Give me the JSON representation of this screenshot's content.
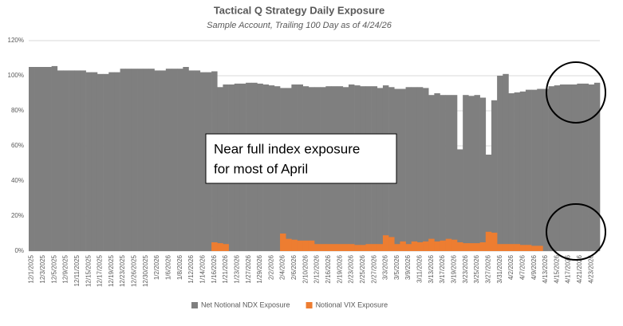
{
  "chart_data": {
    "type": "bar",
    "title": "Tactical Q Strategy Daily Exposure",
    "subtitle": "Sample Account, Trailing 100 Day as of 4/24/26",
    "annotation": [
      "Near full index exposure",
      "for most of April"
    ],
    "categories": [
      "12/1/2025",
      null,
      "12/3/2025",
      null,
      "12/5/2025",
      null,
      "12/9/2025",
      null,
      "12/11/2025",
      null,
      "12/15/2025",
      null,
      "12/17/2025",
      null,
      "12/19/2025",
      null,
      "12/23/2025",
      null,
      "12/26/2025",
      null,
      "12/30/2025",
      null,
      "1/2/2026",
      null,
      "1/6/2026",
      null,
      "1/8/2026",
      null,
      "1/12/2026",
      null,
      "1/14/2026",
      null,
      "1/16/2026",
      null,
      "1/21/2026",
      null,
      "1/23/2026",
      null,
      "1/27/2026",
      null,
      "1/29/2026",
      null,
      "2/2/2026",
      null,
      "2/4/2026",
      null,
      "2/6/2026",
      null,
      "2/10/2026",
      null,
      "2/12/2026",
      null,
      "2/16/2026",
      null,
      "2/19/2026",
      null,
      "2/23/2026",
      null,
      "2/25/2026",
      null,
      "2/27/2026",
      null,
      "3/3/2026",
      null,
      "3/5/2026",
      null,
      "3/9/2026",
      null,
      "3/11/2026",
      null,
      "3/13/2026",
      null,
      "3/17/2026",
      null,
      "3/19/2026",
      null,
      "3/23/2026",
      null,
      "3/25/2026",
      null,
      "3/27/2026",
      null,
      "3/31/2026",
      null,
      "4/2/2026",
      null,
      "4/7/2026",
      null,
      "4/9/2026",
      null,
      "4/13/2026",
      null,
      "4/15/2026",
      null,
      "4/17/2026",
      null,
      "4/21/2026",
      null,
      "4/23/2026",
      null
    ],
    "series": [
      {
        "name": "Net Notional NDX Exposure",
        "color": "#7f7f7f",
        "values": [
          105,
          105,
          105,
          105,
          105.5,
          103,
          103,
          103,
          103,
          103,
          102,
          102,
          101,
          101,
          102,
          102,
          104,
          104,
          104,
          104,
          104,
          104,
          103,
          103,
          104,
          104,
          104,
          105,
          103,
          103,
          102,
          102,
          102.5,
          93.5,
          95,
          95,
          95.5,
          95.5,
          96,
          96,
          95.5,
          95,
          94.5,
          94,
          93,
          93,
          95,
          95,
          94,
          93.5,
          93.5,
          93.5,
          94,
          94,
          94,
          93.5,
          95,
          94.5,
          94,
          94,
          94,
          93,
          94.5,
          93.5,
          92.5,
          92.5,
          93.5,
          93.5,
          93.5,
          93,
          89,
          90,
          89,
          89,
          89,
          58,
          89,
          88.5,
          89,
          87.5,
          55,
          86,
          100,
          101,
          90,
          90.5,
          91,
          92,
          92,
          92.5,
          92.5,
          94,
          94.5,
          95,
          95,
          95,
          95.5,
          95.5,
          95,
          96
        ]
      },
      {
        "name": "Notional VIX Exposure",
        "color": "#ed7d31",
        "values": [
          0,
          0,
          0,
          0,
          0,
          0,
          0,
          0,
          0,
          0,
          0,
          0,
          0,
          0,
          0,
          0,
          0,
          0,
          0,
          0,
          0,
          0,
          0,
          0,
          0,
          0,
          0,
          0,
          0,
          0,
          0,
          0,
          5,
          4.5,
          4,
          0,
          0,
          0,
          0,
          0,
          0,
          0,
          0,
          0,
          10,
          7,
          6.5,
          6,
          6,
          6,
          4,
          4,
          4,
          4,
          4,
          4,
          4,
          3.5,
          3.5,
          4,
          4,
          4,
          9,
          8,
          4,
          5.5,
          4,
          5.5,
          5,
          5.5,
          7,
          5.5,
          6,
          7,
          6.5,
          5,
          4.5,
          4.5,
          4.5,
          5,
          11,
          10.5,
          4,
          4,
          4,
          4,
          3.5,
          3.5,
          3,
          3,
          0,
          0,
          0,
          0,
          0,
          0,
          0,
          0,
          0,
          0
        ]
      }
    ],
    "ylim": [
      0,
      120
    ],
    "yticks": [
      {
        "value": 0,
        "label": "0%"
      },
      {
        "value": 20,
        "label": "20%"
      },
      {
        "value": 40,
        "label": "40%"
      },
      {
        "value": 60,
        "label": "60%"
      },
      {
        "value": 80,
        "label": "80%"
      },
      {
        "value": 100,
        "label": "100%"
      },
      {
        "value": 120,
        "label": "120%"
      }
    ],
    "grid": true,
    "legend": "bottom"
  }
}
